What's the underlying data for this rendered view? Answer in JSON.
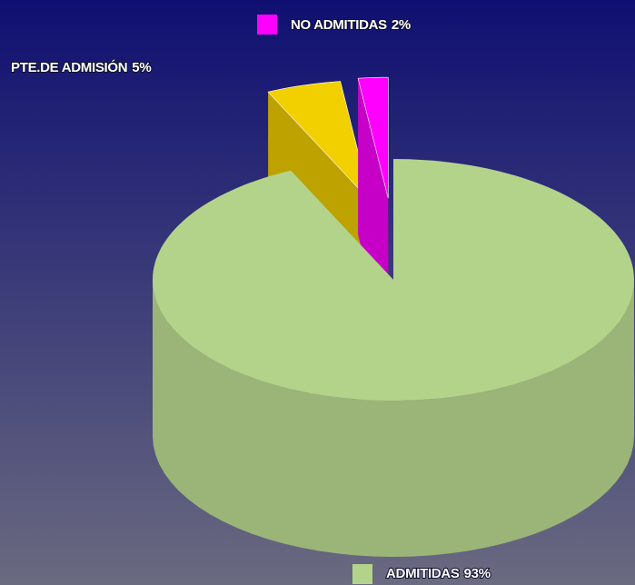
{
  "chart_data": {
    "type": "pie",
    "categories": [
      "ADMITIDAS",
      "PTE.DE ADMISIÓN",
      "NO ADMITIDAS"
    ],
    "values": [
      93,
      5,
      2
    ],
    "value_labels": [
      "93%",
      "5%",
      "2%"
    ],
    "colors": [
      "#b3d38a",
      "#f2d000",
      "#ff00ff"
    ]
  }
}
